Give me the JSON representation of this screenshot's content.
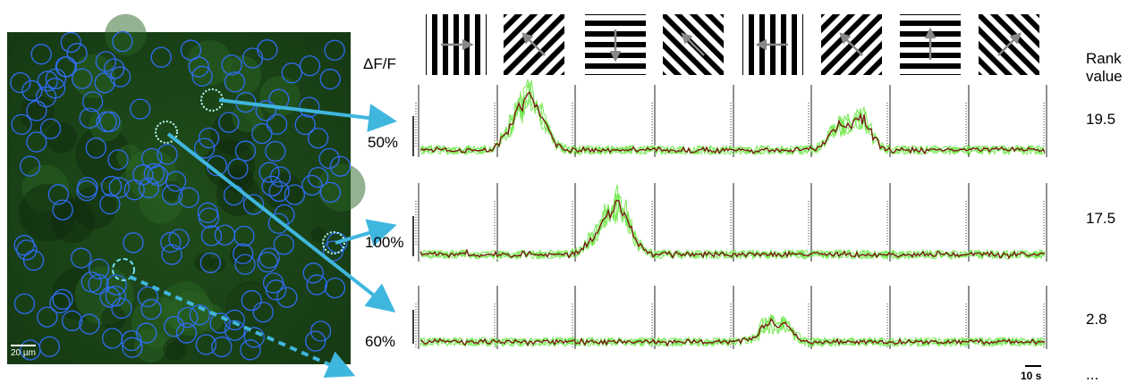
{
  "header": {
    "delta_f": "ΔF/F",
    "rank": "Rank value"
  },
  "image": {
    "scale_bar": "20 µm"
  },
  "rows": [
    {
      "scale": "50%",
      "rank": "19.5"
    },
    {
      "scale": "100%",
      "rank": "17.5"
    },
    {
      "scale": "60%",
      "rank": "2.8"
    }
  ],
  "time_scale": "10 s",
  "more": "..."
}
